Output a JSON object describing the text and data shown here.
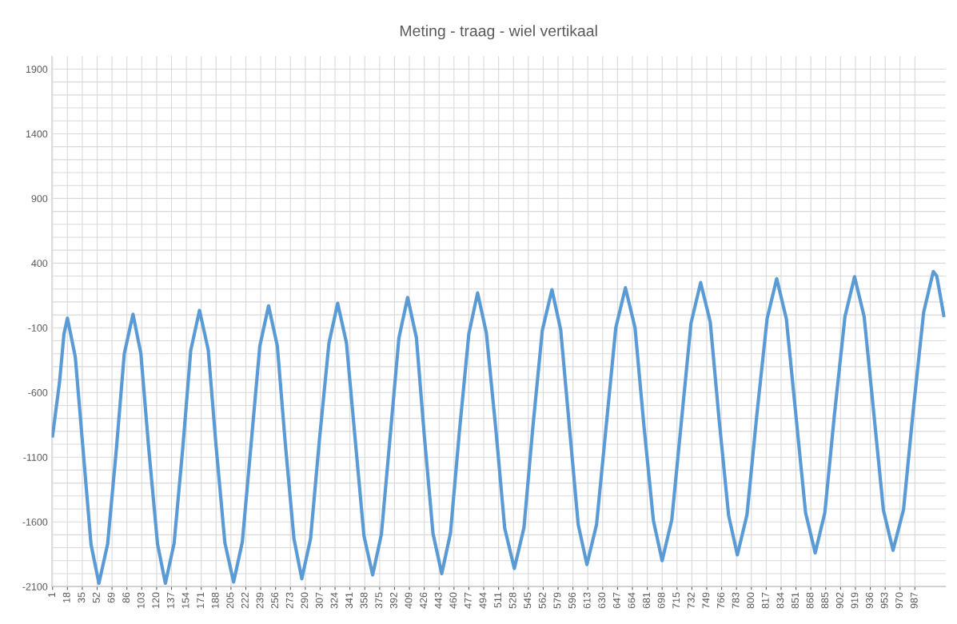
{
  "chart_data": {
    "type": "line",
    "title": "Meting - traag - wiel vertikaal",
    "x": [
      1,
      9,
      14,
      18,
      27,
      36,
      45,
      54,
      64,
      74,
      83,
      93,
      102,
      111,
      121,
      130,
      140,
      150,
      159,
      169,
      179,
      188,
      198,
      208,
      218,
      228,
      238,
      248,
      258,
      267,
      277,
      286,
      296,
      306,
      317,
      327,
      337,
      347,
      357,
      367,
      377,
      387,
      397,
      407,
      417,
      426,
      436,
      446,
      456,
      466,
      477,
      487,
      497,
      508,
      518,
      529,
      540,
      550,
      561,
      572,
      582,
      592,
      602,
      612,
      623,
      634,
      645,
      656,
      667,
      677,
      688,
      698,
      709,
      720,
      731,
      742,
      753,
      763,
      774,
      784,
      795,
      806,
      818,
      829,
      840,
      851,
      862,
      873,
      884,
      895,
      907,
      918,
      929,
      940,
      951,
      962,
      974,
      985,
      997,
      1008,
      1012,
      1016,
      1020
    ],
    "series": [
      {
        "color": "#5b9bd5",
        "values": [
          -935,
          -520,
          -150,
          -25,
          -325,
          -1050,
          -1775,
          -2075,
          -1770,
          -1035,
          -300,
          5,
          -300,
          -1035,
          -1770,
          -2075,
          -1765,
          -1020,
          -275,
          35,
          -270,
          -1015,
          -1760,
          -2065,
          -1755,
          -1000,
          -240,
          70,
          -240,
          -985,
          -1730,
          -2040,
          -1730,
          -975,
          -220,
          90,
          -215,
          -960,
          -1705,
          -2010,
          -1695,
          -940,
          -180,
          135,
          -175,
          -930,
          -1690,
          -2000,
          -1685,
          -915,
          -145,
          170,
          -140,
          -895,
          -1650,
          -1960,
          -1645,
          -880,
          -120,
          195,
          -115,
          -870,
          -1620,
          -1930,
          -1620,
          -860,
          -100,
          210,
          -100,
          -845,
          -1590,
          -1900,
          -1585,
          -825,
          -65,
          250,
          -55,
          -800,
          -1550,
          -1855,
          -1545,
          -790,
          -30,
          280,
          -30,
          -780,
          -1530,
          -1840,
          -1530,
          -770,
          -15,
          295,
          -15,
          -760,
          -1510,
          -1820,
          -1505,
          -745,
          20,
          335,
          300,
          150,
          -5
        ]
      }
    ],
    "xlim": [
      0,
      1022
    ],
    "xticks": [
      1,
      18,
      35,
      52,
      69,
      86,
      103,
      120,
      137,
      154,
      171,
      188,
      205,
      222,
      239,
      256,
      273,
      290,
      307,
      324,
      341,
      358,
      375,
      392,
      409,
      426,
      443,
      460,
      477,
      494,
      511,
      528,
      545,
      562,
      579,
      596,
      613,
      630,
      647,
      664,
      681,
      698,
      715,
      732,
      749,
      766,
      783,
      800,
      817,
      834,
      851,
      868,
      885,
      902,
      919,
      936,
      953,
      970,
      987
    ],
    "ylim": [
      -2100,
      2000
    ],
    "yticks": [
      -2100,
      {
        "value": -2000,
        "label": null
      },
      {
        "value": -1900,
        "label": null
      },
      {
        "value": -1800,
        "label": null
      },
      {
        "value": -1700,
        "label": null
      },
      -1600,
      {
        "value": -1500,
        "label": null
      },
      {
        "value": -1400,
        "label": null
      },
      {
        "value": -1300,
        "label": null
      },
      {
        "value": -1200,
        "label": null
      },
      -1100,
      {
        "value": -1000,
        "label": null
      },
      {
        "value": -900,
        "label": null
      },
      {
        "value": -800,
        "label": null
      },
      {
        "value": -700,
        "label": null
      },
      -600,
      {
        "value": -500,
        "label": null
      },
      {
        "value": -400,
        "label": null
      },
      {
        "value": -300,
        "label": null
      },
      {
        "value": -200,
        "label": null
      },
      -100,
      {
        "value": 0,
        "label": null
      },
      {
        "value": 100,
        "label": null
      },
      {
        "value": 200,
        "label": null
      },
      {
        "value": 300,
        "label": null
      },
      400,
      {
        "value": 500,
        "label": null
      },
      {
        "value": 600,
        "label": null
      },
      {
        "value": 700,
        "label": null
      },
      {
        "value": 800,
        "label": null
      },
      900,
      {
        "value": 1000,
        "label": null
      },
      {
        "value": 1100,
        "label": null
      },
      {
        "value": 1200,
        "label": null
      },
      {
        "value": 1300,
        "label": null
      },
      1400,
      {
        "value": 1500,
        "label": null
      },
      {
        "value": 1600,
        "label": null
      },
      {
        "value": 1700,
        "label": null
      },
      {
        "value": 1800,
        "label": null
      },
      1900
    ],
    "grid": true,
    "marker": "none",
    "line_style": "solid"
  }
}
